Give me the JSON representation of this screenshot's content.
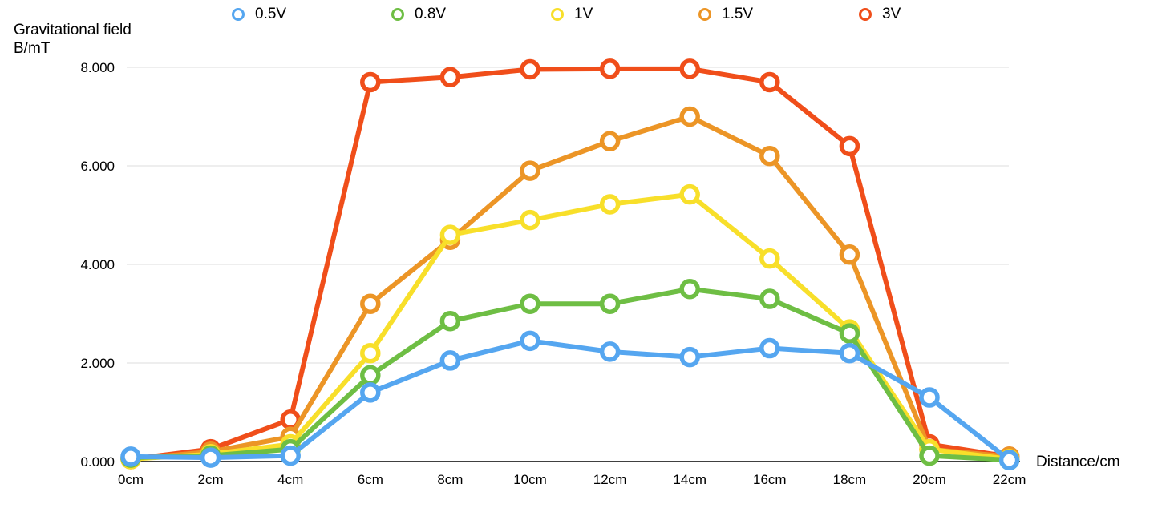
{
  "chart_data": {
    "type": "line",
    "ylabel_line1": "Gravitational field",
    "ylabel_line2": "B/mT",
    "xlabel": "Distance/cm",
    "categories": [
      "0cm",
      "2cm",
      "4cm",
      "6cm",
      "8cm",
      "10cm",
      "12cm",
      "14cm",
      "16cm",
      "18cm",
      "20cm",
      "22cm"
    ],
    "yticks": [
      "0.000",
      "2.000",
      "4.000",
      "6.000",
      "8.000"
    ],
    "ylim": [
      0,
      8
    ],
    "grid": true,
    "legend_position": "top",
    "series": [
      {
        "name": "3V",
        "color": "#f04e1a",
        "values": [
          0.05,
          0.25,
          0.85,
          7.7,
          7.8,
          7.96,
          7.97,
          7.97,
          7.7,
          6.4,
          0.35,
          0.1
        ]
      },
      {
        "name": "1.5V",
        "color": "#ec9526",
        "values": [
          0.05,
          0.2,
          0.5,
          3.2,
          4.5,
          5.9,
          6.5,
          7.0,
          6.2,
          4.2,
          0.25,
          0.1
        ]
      },
      {
        "name": "1V",
        "color": "#f8df2a",
        "values": [
          0.05,
          0.15,
          0.35,
          2.2,
          4.6,
          4.9,
          5.22,
          5.42,
          4.12,
          2.68,
          0.25,
          0.05
        ]
      },
      {
        "name": "0.8V",
        "color": "#6ebe44",
        "values": [
          0.08,
          0.12,
          0.25,
          1.75,
          2.85,
          3.2,
          3.2,
          3.5,
          3.3,
          2.6,
          0.12,
          0.03
        ]
      },
      {
        "name": "0.5V",
        "color": "#55a6f0",
        "values": [
          0.1,
          0.08,
          0.12,
          1.4,
          2.05,
          2.45,
          2.23,
          2.12,
          2.3,
          2.2,
          1.3,
          0.03
        ]
      }
    ],
    "legend_order": [
      "0.5V",
      "0.8V",
      "1V",
      "1.5V",
      "3V"
    ]
  }
}
